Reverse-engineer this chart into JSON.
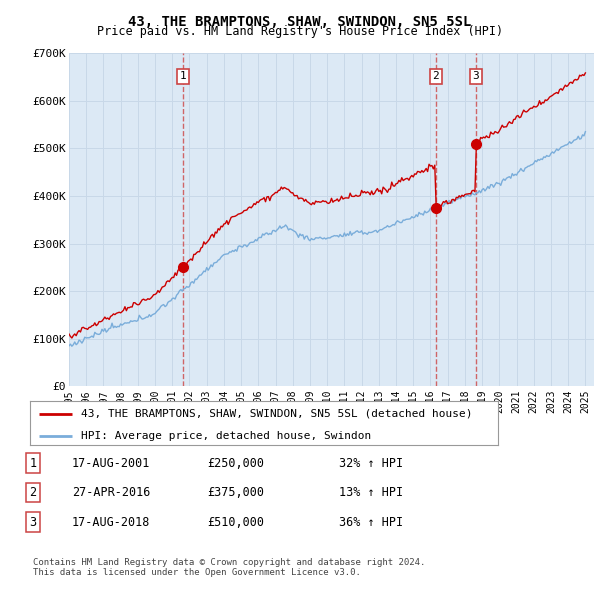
{
  "title": "43, THE BRAMPTONS, SHAW, SWINDON, SN5 5SL",
  "subtitle": "Price paid vs. HM Land Registry's House Price Index (HPI)",
  "background_color": "#ffffff",
  "plot_bg_color": "#dce9f5",
  "ylim": [
    0,
    700000
  ],
  "yticks": [
    0,
    100000,
    200000,
    300000,
    400000,
    500000,
    600000,
    700000
  ],
  "ytick_labels": [
    "£0",
    "£100K",
    "£200K",
    "£300K",
    "£400K",
    "£500K",
    "£600K",
    "£700K"
  ],
  "sales": [
    {
      "date_num": 2001.625,
      "price": 250000,
      "label": "1"
    },
    {
      "date_num": 2016.32,
      "price": 375000,
      "label": "2"
    },
    {
      "date_num": 2018.625,
      "price": 510000,
      "label": "3"
    }
  ],
  "transactions": [
    {
      "num": "1",
      "date": "17-AUG-2001",
      "price": "£250,000",
      "pct": "32% ↑ HPI"
    },
    {
      "num": "2",
      "date": "27-APR-2016",
      "price": "£375,000",
      "pct": "13% ↑ HPI"
    },
    {
      "num": "3",
      "date": "17-AUG-2018",
      "price": "£510,000",
      "pct": "36% ↑ HPI"
    }
  ],
  "legend_red_label": "43, THE BRAMPTONS, SHAW, SWINDON, SN5 5SL (detached house)",
  "legend_blue_label": "HPI: Average price, detached house, Swindon",
  "footer": "Contains HM Land Registry data © Crown copyright and database right 2024.\nThis data is licensed under the Open Government Licence v3.0.",
  "red_color": "#cc0000",
  "blue_color": "#7aadda",
  "grid_color": "#c8d8e8",
  "dashed_color": "#cc4444",
  "sale1_date": 2001.625,
  "sale1_price": 250000,
  "sale2_date": 2016.32,
  "sale2_price": 375000,
  "sale3_date": 2018.625,
  "sale3_price": 510000,
  "xmin": 1995,
  "xmax": 2025
}
